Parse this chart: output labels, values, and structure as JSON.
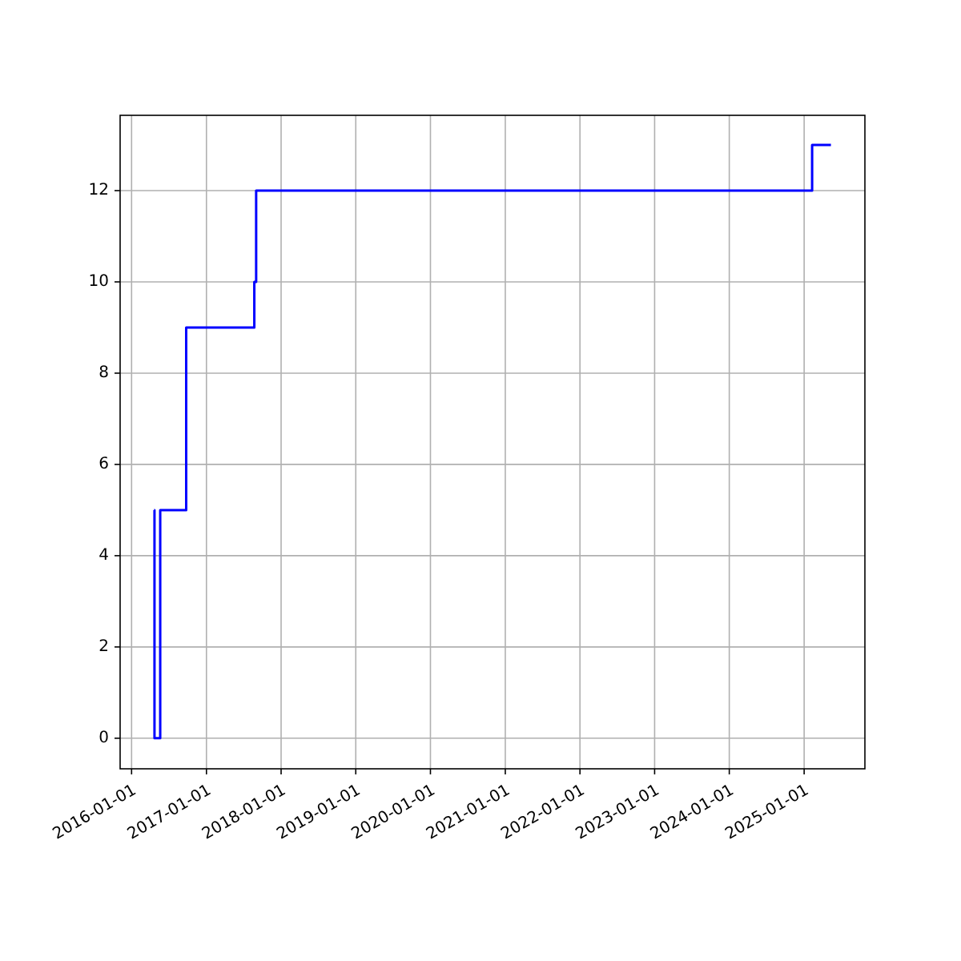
{
  "chart_data": {
    "type": "step",
    "x": [
      "2016-04-20",
      "2016-04-22",
      "2016-05-20",
      "2016-09-24",
      "2017-08-23",
      "2017-09-01",
      "2025-02-09",
      "2025-05-12"
    ],
    "series": [
      {
        "color": "#0000ff",
        "values": [
          5,
          0,
          5,
          9,
          10,
          12,
          13,
          13
        ]
      }
    ],
    "xlim": [
      "2015-11-06",
      "2025-10-25"
    ],
    "xticks": [
      "2016-01-01",
      "2017-01-01",
      "2018-01-01",
      "2019-01-01",
      "2020-01-01",
      "2021-01-01",
      "2022-01-01",
      "2023-01-01",
      "2024-01-01",
      "2025-01-01"
    ],
    "ylim": [
      -0.67,
      13.65
    ],
    "yticks": [
      0,
      2,
      4,
      6,
      8,
      10,
      12
    ],
    "grid": true,
    "line_style": "solid",
    "marker": "none"
  }
}
